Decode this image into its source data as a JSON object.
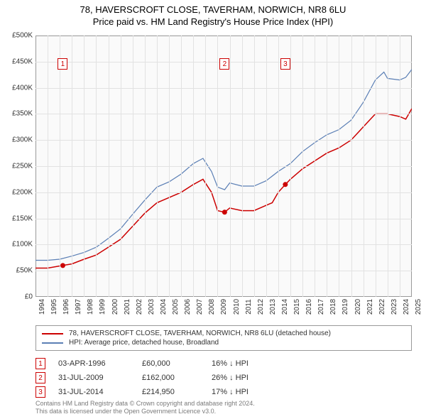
{
  "title": {
    "main": "78, HAVERSCROFT CLOSE, TAVERHAM, NORWICH, NR8 6LU",
    "sub": "Price paid vs. HM Land Registry's House Price Index (HPI)"
  },
  "chart": {
    "type": "line",
    "background_color": "#fafafa",
    "grid_color": "#e2e2e2",
    "axis_color": "#999999",
    "x": {
      "min": 1994,
      "max": 2025,
      "ticks": [
        1994,
        1995,
        1996,
        1997,
        1998,
        1999,
        2000,
        2001,
        2002,
        2003,
        2004,
        2005,
        2006,
        2007,
        2008,
        2009,
        2010,
        2011,
        2012,
        2013,
        2014,
        2015,
        2016,
        2017,
        2018,
        2019,
        2020,
        2021,
        2022,
        2023,
        2024,
        2025
      ],
      "label_fontsize": 10,
      "rotation": -90
    },
    "y": {
      "min": 0,
      "max": 500000,
      "ticks": [
        0,
        50000,
        100000,
        150000,
        200000,
        250000,
        300000,
        350000,
        400000,
        450000,
        500000
      ],
      "tick_labels": [
        "£0",
        "£50K",
        "£100K",
        "£150K",
        "£200K",
        "£250K",
        "£300K",
        "£350K",
        "£400K",
        "£450K",
        "£500K"
      ],
      "label_fontsize": 10
    },
    "series": [
      {
        "name": "price_paid",
        "label": "78, HAVERSCROFT CLOSE, TAVERHAM, NORWICH, NR8 6LU (detached house)",
        "color": "#cc0000",
        "line_width": 1.5,
        "data": [
          [
            1994,
            55000
          ],
          [
            1995,
            55000
          ],
          [
            1996.25,
            60000
          ],
          [
            1997,
            63000
          ],
          [
            1998,
            72000
          ],
          [
            1999,
            80000
          ],
          [
            2000,
            95000
          ],
          [
            2001,
            110000
          ],
          [
            2002,
            135000
          ],
          [
            2003,
            160000
          ],
          [
            2004,
            180000
          ],
          [
            2005,
            190000
          ],
          [
            2006,
            200000
          ],
          [
            2007,
            215000
          ],
          [
            2007.8,
            225000
          ],
          [
            2008.5,
            200000
          ],
          [
            2009,
            165000
          ],
          [
            2009.58,
            162000
          ],
          [
            2010,
            170000
          ],
          [
            2011,
            165000
          ],
          [
            2012,
            165000
          ],
          [
            2013,
            175000
          ],
          [
            2013.5,
            180000
          ],
          [
            2014,
            200000
          ],
          [
            2014.58,
            214950
          ],
          [
            2015,
            225000
          ],
          [
            2016,
            245000
          ],
          [
            2017,
            260000
          ],
          [
            2018,
            275000
          ],
          [
            2019,
            285000
          ],
          [
            2020,
            300000
          ],
          [
            2021,
            325000
          ],
          [
            2022,
            350000
          ],
          [
            2023,
            350000
          ],
          [
            2024,
            345000
          ],
          [
            2024.5,
            340000
          ],
          [
            2025,
            360000
          ]
        ]
      },
      {
        "name": "hpi",
        "label": "HPI: Average price, detached house, Broadland",
        "color": "#5b7fb5",
        "line_width": 1.2,
        "data": [
          [
            1994,
            70000
          ],
          [
            1995,
            70000
          ],
          [
            1996,
            72000
          ],
          [
            1997,
            78000
          ],
          [
            1998,
            85000
          ],
          [
            1999,
            95000
          ],
          [
            2000,
            112000
          ],
          [
            2001,
            130000
          ],
          [
            2002,
            158000
          ],
          [
            2003,
            185000
          ],
          [
            2004,
            210000
          ],
          [
            2005,
            220000
          ],
          [
            2006,
            235000
          ],
          [
            2007,
            255000
          ],
          [
            2007.8,
            265000
          ],
          [
            2008.5,
            240000
          ],
          [
            2009,
            210000
          ],
          [
            2009.58,
            205000
          ],
          [
            2010,
            218000
          ],
          [
            2011,
            212000
          ],
          [
            2012,
            212000
          ],
          [
            2013,
            222000
          ],
          [
            2014,
            240000
          ],
          [
            2015,
            255000
          ],
          [
            2016,
            278000
          ],
          [
            2017,
            295000
          ],
          [
            2018,
            310000
          ],
          [
            2019,
            320000
          ],
          [
            2020,
            338000
          ],
          [
            2021,
            372000
          ],
          [
            2022,
            415000
          ],
          [
            2022.7,
            430000
          ],
          [
            2023,
            418000
          ],
          [
            2024,
            415000
          ],
          [
            2024.5,
            420000
          ],
          [
            2025,
            435000
          ]
        ]
      }
    ],
    "markers": [
      {
        "n": "1",
        "x": 1996.25,
        "y_plot": 445000,
        "color": "#cc0000"
      },
      {
        "n": "2",
        "x": 2009.58,
        "y_plot": 445000,
        "color": "#cc0000"
      },
      {
        "n": "3",
        "x": 2014.58,
        "y_plot": 445000,
        "color": "#cc0000"
      }
    ]
  },
  "legend": {
    "items": [
      {
        "color": "#cc0000",
        "label": "78, HAVERSCROFT CLOSE, TAVERHAM, NORWICH, NR8 6LU (detached house)"
      },
      {
        "color": "#5b7fb5",
        "label": "HPI: Average price, detached house, Broadland"
      }
    ]
  },
  "events": [
    {
      "n": "1",
      "date": "03-APR-1996",
      "price": "£60,000",
      "diff": "16% ↓ HPI"
    },
    {
      "n": "2",
      "date": "31-JUL-2009",
      "price": "£162,000",
      "diff": "26% ↓ HPI"
    },
    {
      "n": "3",
      "date": "31-JUL-2014",
      "price": "£214,950",
      "diff": "17% ↓ HPI"
    }
  ],
  "footer": {
    "line1": "Contains HM Land Registry data © Crown copyright and database right 2024.",
    "line2": "This data is licensed under the Open Government Licence v3.0."
  }
}
